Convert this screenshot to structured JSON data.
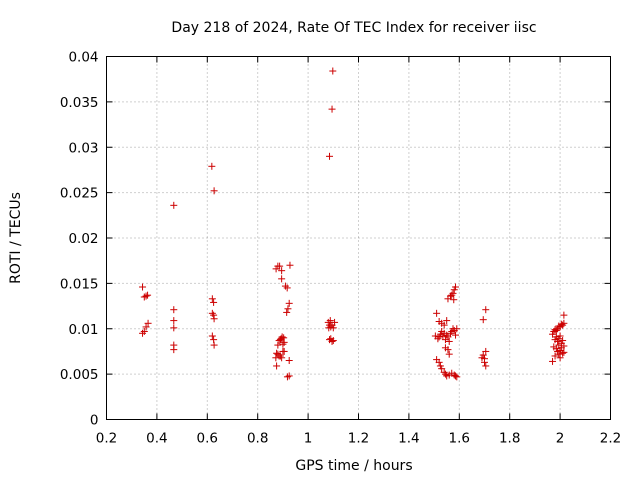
{
  "chart_data": {
    "type": "scatter",
    "title": "Day 218 of 2024, Rate Of TEC Index for receiver iisc",
    "xlabel": "GPS time / hours",
    "ylabel": "ROTI / TECUs",
    "xlim": [
      0.2,
      2.2
    ],
    "ylim": [
      0,
      0.04
    ],
    "xticks": [
      "0.2",
      "0.4",
      "0.6",
      "0.8",
      "1",
      "1.2",
      "1.4",
      "1.6",
      "1.8",
      "2",
      "2.2"
    ],
    "yticks": [
      "0",
      "0.005",
      "0.01",
      "0.015",
      "0.02",
      "0.025",
      "0.03",
      "0.035",
      "0.04"
    ],
    "grid": true,
    "marker": "+",
    "series": [
      {
        "color": "#cc0000",
        "points": [
          [
            0.343,
            0.0146
          ],
          [
            0.35,
            0.0135
          ],
          [
            0.357,
            0.0136
          ],
          [
            0.363,
            0.0137
          ],
          [
            0.343,
            0.0095
          ],
          [
            0.35,
            0.0097
          ],
          [
            0.357,
            0.0102
          ],
          [
            0.365,
            0.0106
          ],
          [
            0.467,
            0.0236
          ],
          [
            0.467,
            0.0121
          ],
          [
            0.467,
            0.0109
          ],
          [
            0.467,
            0.0101
          ],
          [
            0.467,
            0.0082
          ],
          [
            0.467,
            0.0077
          ],
          [
            0.618,
            0.0279
          ],
          [
            0.627,
            0.0252
          ],
          [
            0.62,
            0.0133
          ],
          [
            0.625,
            0.0129
          ],
          [
            0.62,
            0.0117
          ],
          [
            0.625,
            0.0115
          ],
          [
            0.627,
            0.0111
          ],
          [
            0.62,
            0.0092
          ],
          [
            0.625,
            0.0088
          ],
          [
            0.627,
            0.0082
          ],
          [
            0.873,
            0.0166
          ],
          [
            0.88,
            0.0169
          ],
          [
            0.887,
            0.0169
          ],
          [
            0.895,
            0.0164
          ],
          [
            0.928,
            0.017
          ],
          [
            0.895,
            0.0155
          ],
          [
            0.91,
            0.0147
          ],
          [
            0.917,
            0.0145
          ],
          [
            0.925,
            0.0128
          ],
          [
            0.92,
            0.0122
          ],
          [
            0.915,
            0.0118
          ],
          [
            0.89,
            0.0088
          ],
          [
            0.893,
            0.0089
          ],
          [
            0.897,
            0.0091
          ],
          [
            0.903,
            0.009
          ],
          [
            0.885,
            0.0087
          ],
          [
            0.88,
            0.0082
          ],
          [
            0.9,
            0.0083
          ],
          [
            0.905,
            0.0085
          ],
          [
            0.875,
            0.0073
          ],
          [
            0.88,
            0.0072
          ],
          [
            0.885,
            0.007
          ],
          [
            0.89,
            0.007
          ],
          [
            0.895,
            0.0068
          ],
          [
            0.872,
            0.0068
          ],
          [
            0.9,
            0.0075
          ],
          [
            0.905,
            0.0075
          ],
          [
            0.875,
            0.0059
          ],
          [
            0.925,
            0.0065
          ],
          [
            0.918,
            0.0047
          ],
          [
            0.925,
            0.0048
          ],
          [
            1.098,
            0.0384
          ],
          [
            1.095,
            0.0342
          ],
          [
            1.085,
            0.029
          ],
          [
            1.08,
            0.0107
          ],
          [
            1.085,
            0.0104
          ],
          [
            1.09,
            0.0102
          ],
          [
            1.095,
            0.0104
          ],
          [
            1.1,
            0.0101
          ],
          [
            1.105,
            0.0107
          ],
          [
            1.088,
            0.0109
          ],
          [
            1.082,
            0.0101
          ],
          [
            1.085,
            0.0088
          ],
          [
            1.09,
            0.0089
          ],
          [
            1.095,
            0.0086
          ],
          [
            1.1,
            0.0087
          ],
          [
            1.51,
            0.0117
          ],
          [
            1.52,
            0.0108
          ],
          [
            1.53,
            0.0106
          ],
          [
            1.54,
            0.0104
          ],
          [
            1.55,
            0.0109
          ],
          [
            1.555,
            0.0133
          ],
          [
            1.565,
            0.0136
          ],
          [
            1.57,
            0.0137
          ],
          [
            1.575,
            0.0139
          ],
          [
            1.58,
            0.0143
          ],
          [
            1.585,
            0.0146
          ],
          [
            1.578,
            0.0132
          ],
          [
            1.505,
            0.0092
          ],
          [
            1.515,
            0.0089
          ],
          [
            1.52,
            0.0091
          ],
          [
            1.525,
            0.0094
          ],
          [
            1.53,
            0.0097
          ],
          [
            1.535,
            0.0092
          ],
          [
            1.54,
            0.0095
          ],
          [
            1.545,
            0.0088
          ],
          [
            1.55,
            0.0093
          ],
          [
            1.555,
            0.0091
          ],
          [
            1.56,
            0.0086
          ],
          [
            1.565,
            0.0095
          ],
          [
            1.57,
            0.0097
          ],
          [
            1.575,
            0.01
          ],
          [
            1.58,
            0.0098
          ],
          [
            1.585,
            0.0093
          ],
          [
            1.59,
            0.01
          ],
          [
            1.545,
            0.0079
          ],
          [
            1.555,
            0.0077
          ],
          [
            1.56,
            0.0072
          ],
          [
            1.51,
            0.0066
          ],
          [
            1.52,
            0.0063
          ],
          [
            1.525,
            0.0059
          ],
          [
            1.53,
            0.0056
          ],
          [
            1.54,
            0.0052
          ],
          [
            1.545,
            0.005
          ],
          [
            1.55,
            0.0048
          ],
          [
            1.56,
            0.0049
          ],
          [
            1.57,
            0.0051
          ],
          [
            1.58,
            0.0049
          ],
          [
            1.585,
            0.0048
          ],
          [
            1.59,
            0.0047
          ],
          [
            1.705,
            0.0121
          ],
          [
            1.695,
            0.011
          ],
          [
            1.705,
            0.0075
          ],
          [
            1.695,
            0.0071
          ],
          [
            1.7,
            0.0067
          ],
          [
            1.69,
            0.0068
          ],
          [
            1.7,
            0.0063
          ],
          [
            1.705,
            0.0059
          ],
          [
            1.975,
            0.0097
          ],
          [
            1.98,
            0.0099
          ],
          [
            1.985,
            0.0098
          ],
          [
            1.99,
            0.01
          ],
          [
            1.995,
            0.0103
          ],
          [
            2.0,
            0.0102
          ],
          [
            2.005,
            0.0105
          ],
          [
            2.01,
            0.0104
          ],
          [
            2.015,
            0.0115
          ],
          [
            2.015,
            0.0106
          ],
          [
            1.97,
            0.0094
          ],
          [
            1.98,
            0.0088
          ],
          [
            1.985,
            0.0091
          ],
          [
            1.99,
            0.0086
          ],
          [
            1.995,
            0.0089
          ],
          [
            2.0,
            0.0092
          ],
          [
            2.005,
            0.0084
          ],
          [
            2.01,
            0.0087
          ],
          [
            2.015,
            0.0081
          ],
          [
            1.975,
            0.008
          ],
          [
            1.985,
            0.0078
          ],
          [
            1.99,
            0.0075
          ],
          [
            1.995,
            0.0072
          ],
          [
            2.0,
            0.0076
          ],
          [
            2.005,
            0.0079
          ],
          [
            2.01,
            0.0073
          ],
          [
            2.015,
            0.0074
          ],
          [
            1.97,
            0.0064
          ],
          [
            1.98,
            0.007
          ],
          [
            1.995,
            0.0082
          ],
          [
            2.0,
            0.0068
          ]
        ]
      }
    ]
  }
}
